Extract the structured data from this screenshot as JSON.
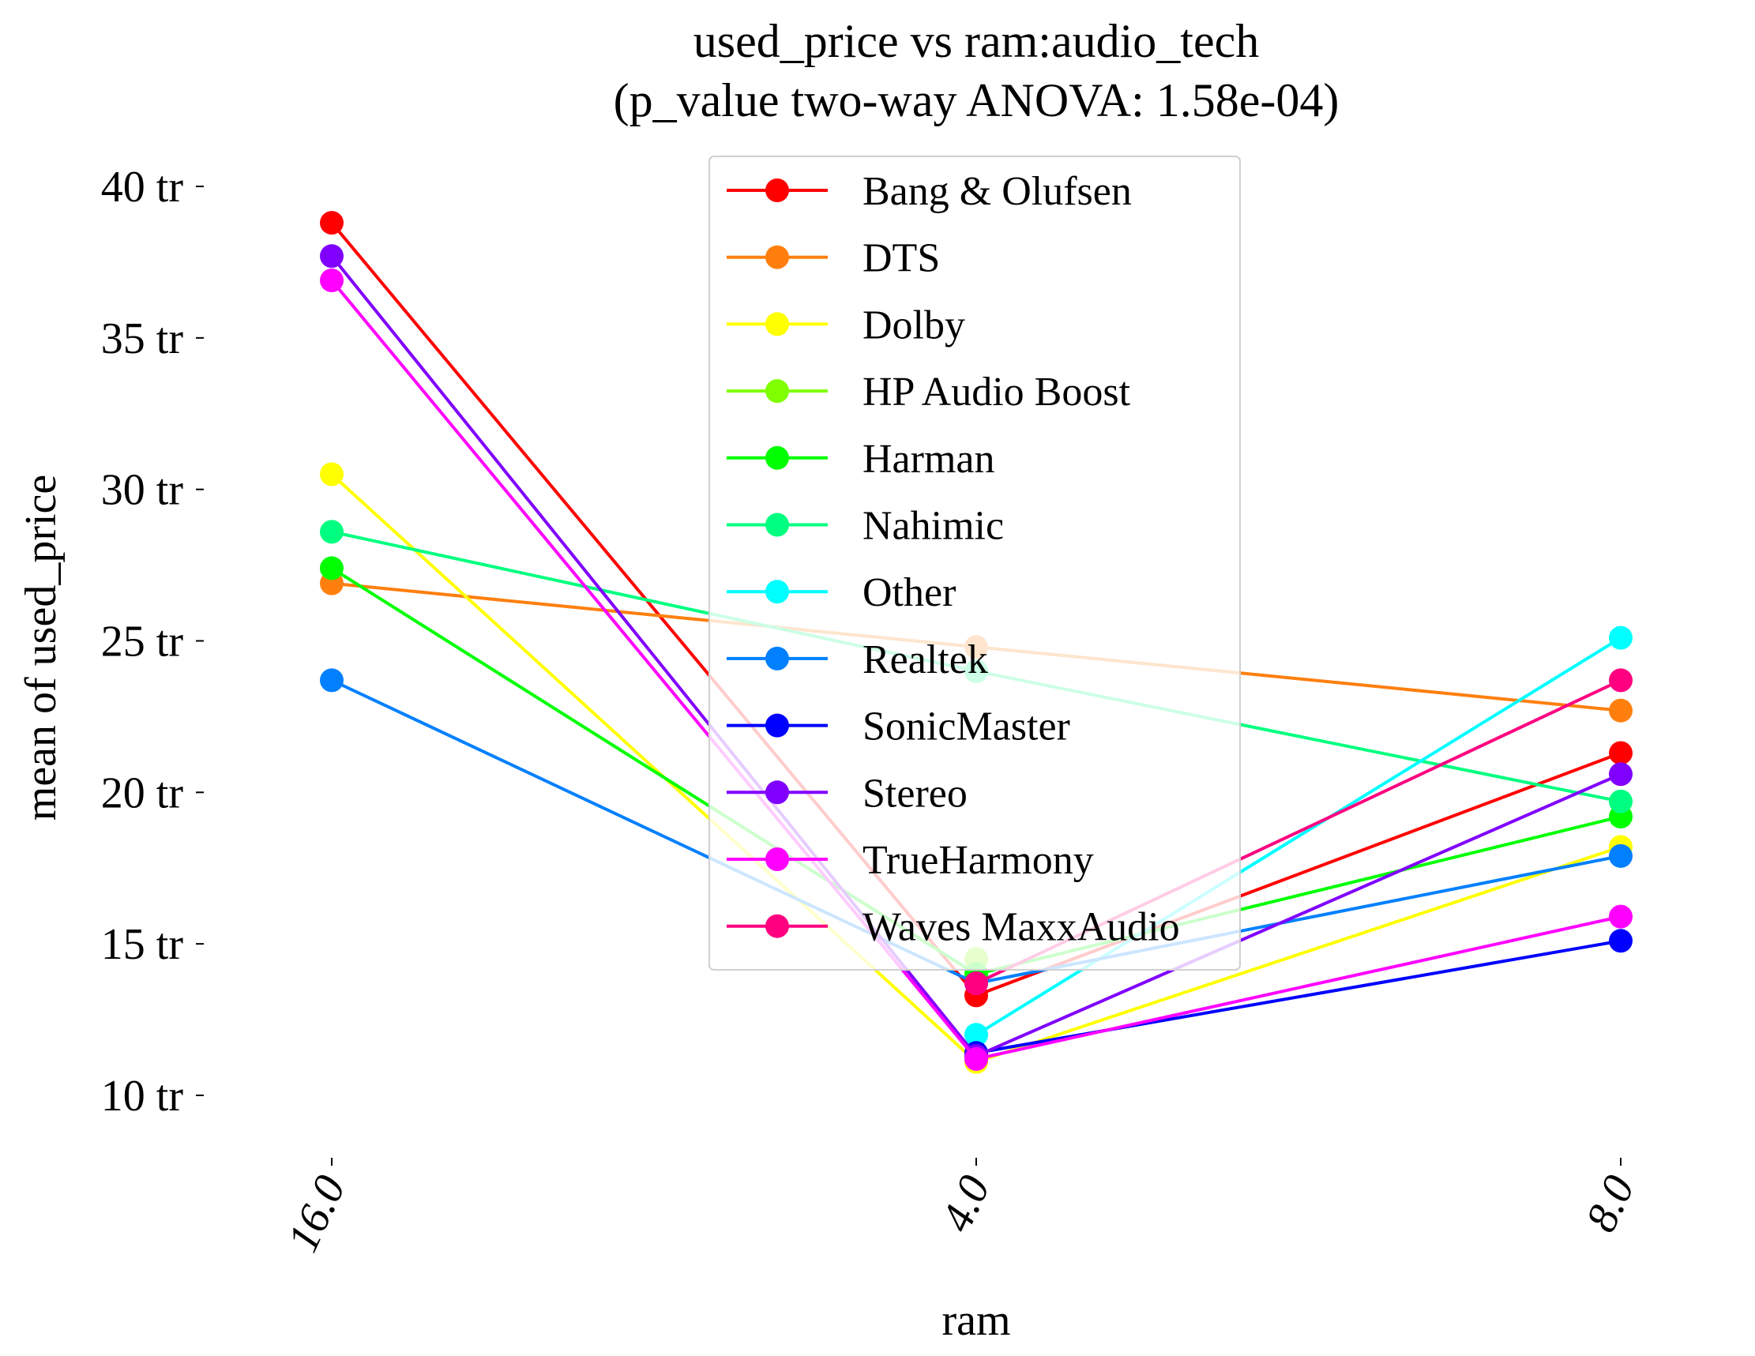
{
  "chart_data": {
    "type": "line",
    "title_line1": "used_price vs ram:audio_tech",
    "title_line2": "(p_value two-way ANOVA: 1.58e-04)",
    "xlabel": "ram",
    "ylabel": "mean of used_price",
    "categories": [
      "16.0",
      "4.0",
      "8.0"
    ],
    "yticks": [
      {
        "value": 10,
        "label": "10 tr"
      },
      {
        "value": 15,
        "label": "15 tr"
      },
      {
        "value": 20,
        "label": "20 tr"
      },
      {
        "value": 25,
        "label": "25 tr"
      },
      {
        "value": 30,
        "label": "30 tr"
      },
      {
        "value": 35,
        "label": "35 tr"
      },
      {
        "value": 40,
        "label": "40 tr"
      }
    ],
    "ylim": [
      8.8,
      41.2
    ],
    "grid": false,
    "legend_position": "upper-center",
    "series": [
      {
        "name": "Bang & Olufsen",
        "color": "#ff0000",
        "values": [
          38.8,
          13.3,
          21.3
        ]
      },
      {
        "name": "DTS",
        "color": "#ff7f0e",
        "values": [
          26.9,
          24.8,
          22.7
        ]
      },
      {
        "name": "Dolby",
        "color": "#ffff00",
        "values": [
          30.5,
          11.1,
          18.2
        ]
      },
      {
        "name": "HP Audio Boost",
        "color": "#80ff00",
        "values": [
          null,
          14.5,
          null
        ]
      },
      {
        "name": "Harman",
        "color": "#00ff00",
        "values": [
          27.4,
          14.0,
          19.2
        ]
      },
      {
        "name": "Nahimic",
        "color": "#00ff80",
        "values": [
          28.6,
          24.0,
          19.7
        ]
      },
      {
        "name": "Other",
        "color": "#00ffff",
        "values": [
          null,
          12.0,
          25.1
        ]
      },
      {
        "name": "Realtek",
        "color": "#0080ff",
        "values": [
          23.7,
          13.7,
          17.9
        ]
      },
      {
        "name": "SonicMaster",
        "color": "#0000ff",
        "values": [
          null,
          11.4,
          15.1
        ]
      },
      {
        "name": "Stereo",
        "color": "#8000ff",
        "values": [
          37.7,
          11.3,
          20.6
        ]
      },
      {
        "name": "TrueHarmony",
        "color": "#ff00ff",
        "values": [
          36.9,
          11.2,
          15.9
        ]
      },
      {
        "name": "Waves MaxxAudio",
        "color": "#ff0080",
        "values": [
          null,
          13.7,
          23.7
        ]
      }
    ]
  }
}
